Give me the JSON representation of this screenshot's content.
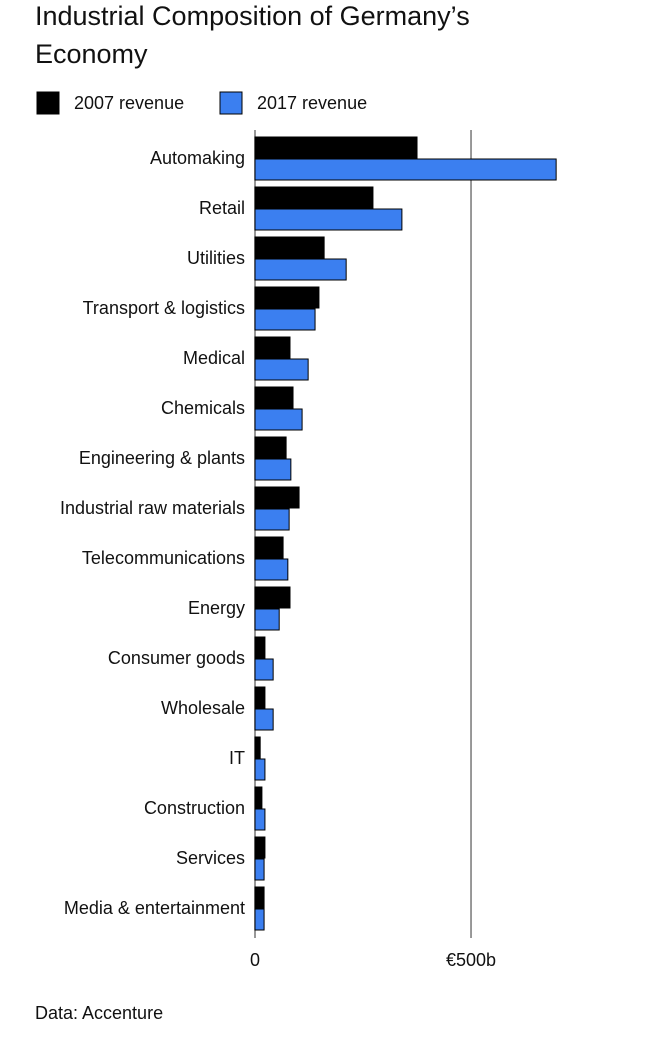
{
  "chart_data": {
    "type": "hbar",
    "title_lines": [
      "Industrial Composition of Germany’s",
      "Economy"
    ],
    "source": "Data: Accenture",
    "categories": [
      "Automaking",
      "Retail",
      "Utilities",
      "Transport & logistics",
      "Medical",
      "Chemicals",
      "Engineering & plants",
      "Industrial raw materials",
      "Telecommunications",
      "Energy",
      "Consumer goods",
      "Wholesale",
      "IT",
      "Construction",
      "Services",
      "Media & entertainment"
    ],
    "series": [
      {
        "name": "2007 revenue",
        "color": "#000000",
        "values": [
          375,
          273,
          160,
          148,
          81,
          88,
          72,
          102,
          65,
          81,
          23,
          23,
          12,
          16,
          23,
          21
        ]
      },
      {
        "name": "2017 revenue",
        "color": "#3b7ff0",
        "values": [
          697,
          340,
          211,
          139,
          123,
          109,
          83,
          79,
          76,
          56,
          42,
          42,
          23,
          23,
          21,
          21
        ]
      }
    ],
    "xlim": [
      0,
      705
    ],
    "xticks": [
      0,
      {
        "value": 500,
        "label": "€500b"
      }
    ],
    "grid": true
  }
}
